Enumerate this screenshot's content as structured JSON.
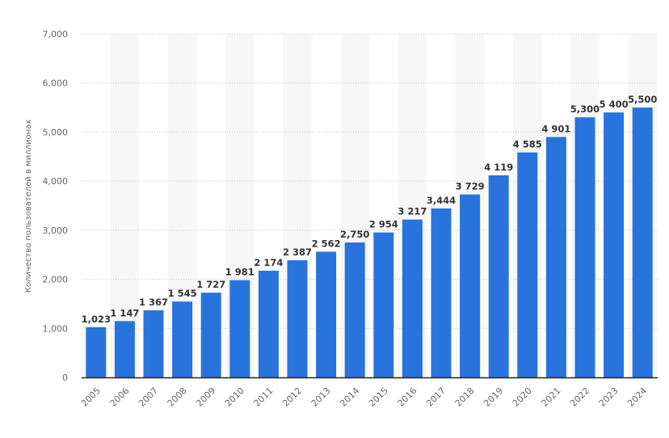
{
  "chart_data": {
    "type": "bar",
    "title": "",
    "xlabel": "",
    "ylabel": "Количество пользователей в миллионах",
    "ylim": [
      0,
      7000
    ],
    "yticks": [
      0,
      1000,
      2000,
      3000,
      4000,
      5000,
      6000,
      7000
    ],
    "ytick_labels": [
      "0",
      "1,000",
      "2,000",
      "3,000",
      "4,000",
      "5,000",
      "6,000",
      "7,000"
    ],
    "grid": true,
    "categories": [
      "2005",
      "2006",
      "2007",
      "2008",
      "2009",
      "2010",
      "2011",
      "2012",
      "2013",
      "2014",
      "2015",
      "2016",
      "2017",
      "2018",
      "2019",
      "2020",
      "2021",
      "2022",
      "2023",
      "2024"
    ],
    "values": [
      1023,
      1147,
      1367,
      1545,
      1727,
      1981,
      2174,
      2387,
      2562,
      2750,
      2954,
      3217,
      3444,
      3729,
      4119,
      4585,
      4901,
      5300,
      5400,
      5500
    ],
    "data_labels": [
      "1,023",
      "1 147",
      "1 367",
      "1 545",
      "1 727",
      "1 981",
      "2 174",
      "2 387",
      "2 562",
      "2,750",
      "2 954",
      "3 217",
      "3,444",
      "3 729",
      "4 119",
      "4 585",
      "4 901",
      "5,300",
      "5 400",
      "5,500"
    ],
    "bar_color": "#2874dc"
  }
}
